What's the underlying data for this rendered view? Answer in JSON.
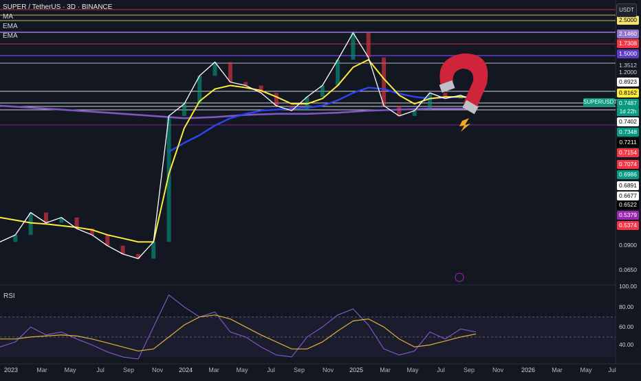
{
  "header": {
    "symbol_line": "SUPER / TetherUS · 3D · BINANCE",
    "indicators": [
      "MA",
      "EMA",
      "EMA"
    ],
    "currency": "USDT"
  },
  "rsi_label": "RSI",
  "colors": {
    "background": "#131722",
    "price": "#ffffff",
    "ema_yellow": "#ffeb3b",
    "ma_blue": "#2f44f2",
    "ema_purple": "#7e57c2",
    "rsi": "#7e57c2",
    "rsi_ma": "#e0b23a",
    "magnet_red": "#d0243a"
  },
  "axis": {
    "price_ticks": [
      "1.3512",
      "1.2000",
      "0.0900",
      "0.0650"
    ],
    "rsi_ticks": [
      "100.00",
      "80.00",
      "60.00",
      "40.00"
    ],
    "price_badges": [
      {
        "label": "2.5000",
        "color": "#f2e36f",
        "text": "#000000"
      },
      {
        "label": "2.1460",
        "color": "#9575cd",
        "text": "#ffffff"
      },
      {
        "label": "1.7308",
        "color": "#f23645",
        "text": "#ffffff"
      },
      {
        "label": "1.5000",
        "color": "#5b3cc4",
        "text": "#ffffff"
      },
      {
        "label": "0.8923",
        "color": "#ffffff",
        "text": "#000000"
      },
      {
        "label": "0.8162",
        "color": "#ffeb3b",
        "text": "#000000"
      },
      {
        "label": "0.7487",
        "color": "#089981",
        "text": "#ffffff"
      },
      {
        "label": "0.7402",
        "color": "#ffffff",
        "text": "#000000"
      },
      {
        "label": "0.7348",
        "color": "#089981",
        "text": "#ffffff"
      },
      {
        "label": "0.7211",
        "color": "#000000",
        "text": "#ffffff"
      },
      {
        "label": "0.7154",
        "color": "#f23645",
        "text": "#ffffff"
      },
      {
        "label": "0.7074",
        "color": "#f23645",
        "text": "#ffffff"
      },
      {
        "label": "0.6986",
        "color": "#089981",
        "text": "#ffffff"
      },
      {
        "label": "0.6891",
        "color": "#ffffff",
        "text": "#000000"
      },
      {
        "label": "0.6677",
        "color": "#ffffff",
        "text": "#000000"
      },
      {
        "label": "0.6522",
        "color": "#000000",
        "text": "#ffffff"
      },
      {
        "label": "0.5379",
        "color": "#9c27b0",
        "text": "#ffffff"
      },
      {
        "label": "0.5374",
        "color": "#f23645",
        "text": "#ffffff"
      }
    ],
    "symbol_badge": "SUPERUSDT",
    "countdown": "1d 22h",
    "time_ticks": [
      "2023",
      "Mar",
      "May",
      "Jul",
      "Sep",
      "Nov",
      "2024",
      "Mar",
      "May",
      "Jul",
      "Sep",
      "Nov",
      "2025",
      "Mar",
      "May",
      "Jul",
      "Sep",
      "Nov",
      "2026",
      "Mar",
      "May",
      "Jul"
    ]
  },
  "chart_data": {
    "type": "line",
    "x": [
      "2023-01",
      "2023-02",
      "2023-03",
      "2023-04",
      "2023-05",
      "2023-06",
      "2023-07",
      "2023-08",
      "2023-09",
      "2023-10",
      "2023-11",
      "2023-12",
      "2024-01",
      "2024-02",
      "2024-03",
      "2024-04",
      "2024-05",
      "2024-06",
      "2024-07",
      "2024-08",
      "2024-09",
      "2024-10",
      "2024-11",
      "2024-12",
      "2025-01",
      "2025-02",
      "2025-03",
      "2025-04",
      "2025-05",
      "2025-06",
      "2025-07",
      "2025-08"
    ],
    "series": [
      {
        "name": "price",
        "values": [
          0.09,
          0.1,
          0.14,
          0.12,
          0.13,
          0.11,
          0.1,
          0.085,
          0.075,
          0.07,
          0.09,
          0.6,
          0.72,
          1.1,
          1.35,
          1.0,
          0.95,
          0.85,
          0.7,
          0.65,
          0.8,
          0.95,
          1.4,
          2.1,
          1.45,
          0.7,
          0.6,
          0.65,
          0.85,
          0.78,
          0.82,
          0.75
        ]
      },
      {
        "name": "ema_yellow",
        "values": [
          0.13,
          0.125,
          0.12,
          0.118,
          0.115,
          0.112,
          0.108,
          0.1,
          0.095,
          0.09,
          0.09,
          0.25,
          0.5,
          0.75,
          0.9,
          0.95,
          0.92,
          0.88,
          0.8,
          0.72,
          0.72,
          0.78,
          0.95,
          1.25,
          1.4,
          1.05,
          0.82,
          0.72,
          0.78,
          0.8,
          0.8,
          0.79
        ]
      },
      {
        "name": "ma_blue",
        "values": [
          null,
          null,
          null,
          null,
          null,
          null,
          null,
          null,
          null,
          null,
          null,
          0.35,
          0.4,
          0.45,
          0.52,
          0.58,
          0.62,
          0.65,
          0.66,
          0.67,
          0.68,
          0.7,
          0.76,
          0.85,
          0.92,
          0.9,
          0.84,
          0.8,
          0.78,
          0.79,
          0.8,
          0.8
        ]
      },
      {
        "name": "ema_purple",
        "values": [
          0.7,
          0.69,
          0.68,
          0.67,
          0.66,
          0.65,
          0.64,
          0.63,
          0.62,
          0.61,
          0.6,
          0.59,
          0.58,
          0.585,
          0.59,
          0.6,
          0.61,
          0.615,
          0.62,
          0.62,
          0.62,
          0.625,
          0.63,
          0.64,
          0.65,
          0.655,
          0.66,
          0.665,
          0.67,
          0.67,
          0.67,
          0.67
        ]
      }
    ],
    "rsi": {
      "values": [
        40,
        45,
        60,
        52,
        55,
        48,
        42,
        35,
        30,
        28,
        60,
        92,
        80,
        70,
        75,
        55,
        50,
        40,
        32,
        30,
        50,
        60,
        72,
        78,
        62,
        38,
        32,
        36,
        55,
        48,
        58,
        55
      ],
      "ma": [
        48,
        48,
        50,
        51,
        52,
        51,
        48,
        44,
        40,
        36,
        38,
        50,
        62,
        70,
        72,
        68,
        60,
        52,
        45,
        38,
        38,
        45,
        56,
        66,
        68,
        60,
        48,
        40,
        42,
        46,
        50,
        53
      ],
      "ylim": [
        30,
        100
      ]
    }
  }
}
